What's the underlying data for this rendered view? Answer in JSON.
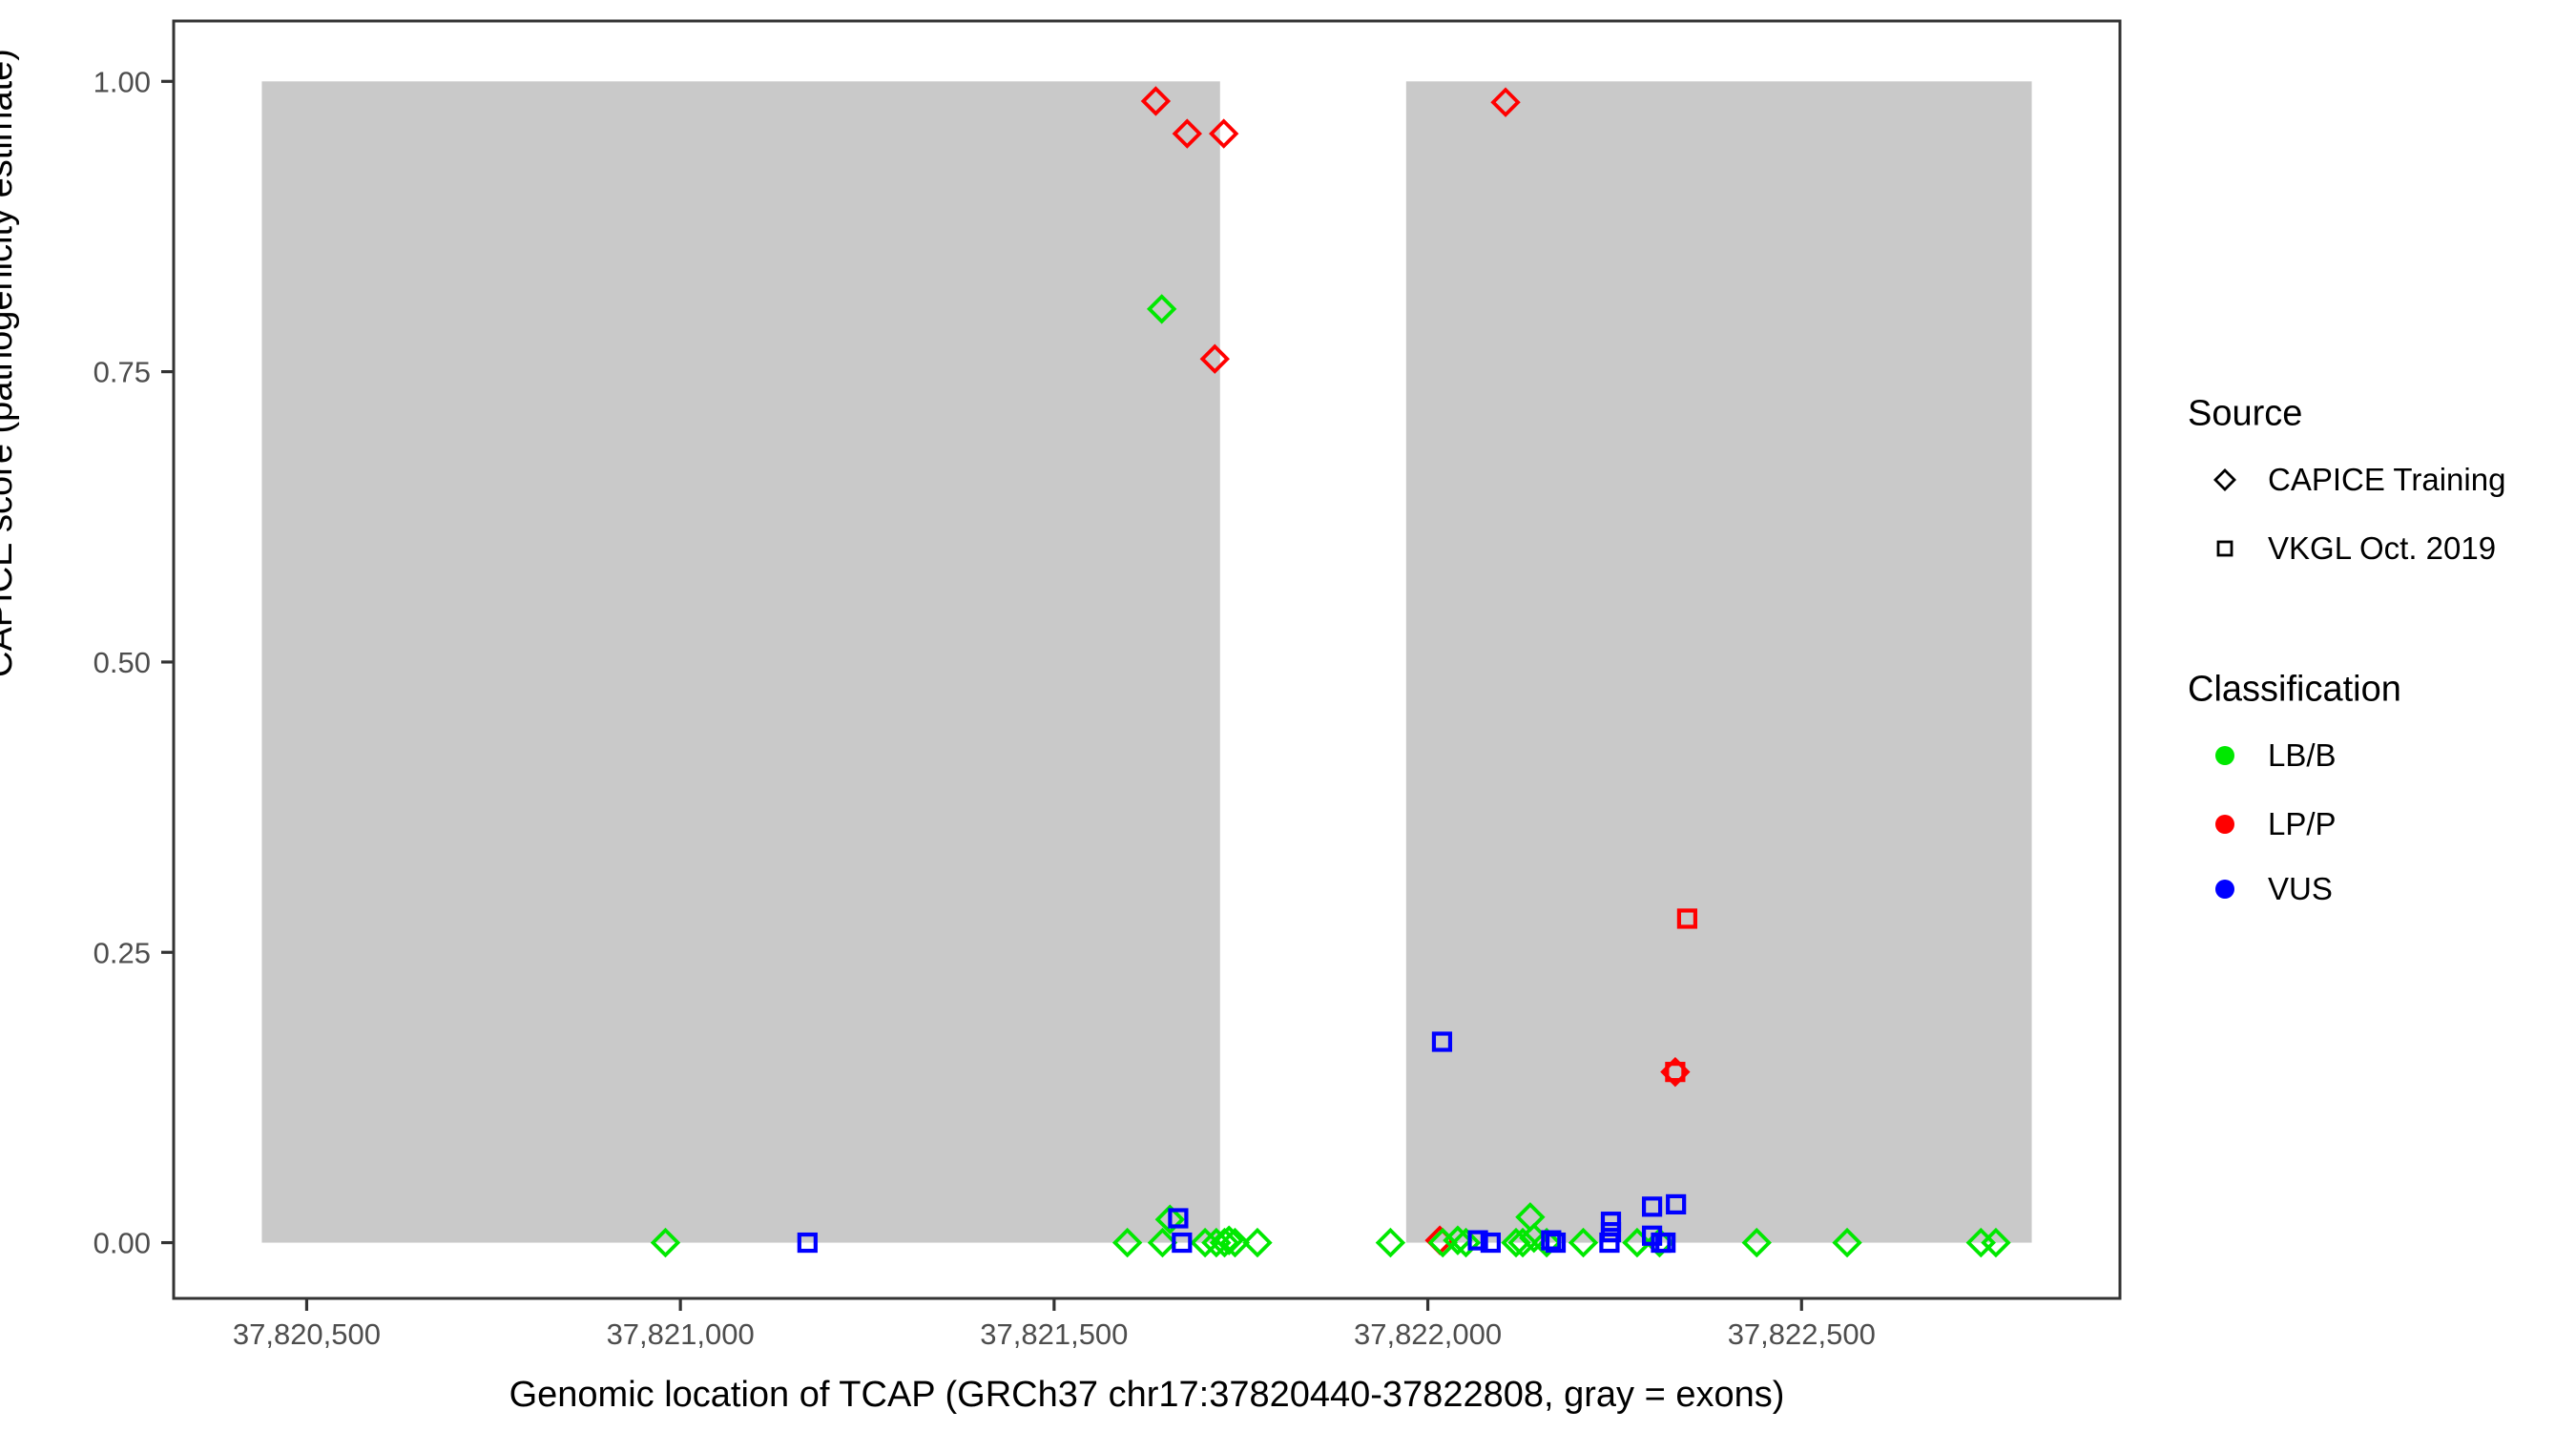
{
  "chart_data": {
    "type": "scatter",
    "xlabel": "Genomic location of TCAP (GRCh37 chr17:37820440-37822808, gray = exons)",
    "ylabel": "CAPICE score (pathogenicity estimate)",
    "xlim": [
      37820322,
      37822926
    ],
    "ylim": [
      -0.048,
      1.052
    ],
    "grid": "off",
    "x_ticks": [
      {
        "value": 37820500,
        "label": "37,820,500"
      },
      {
        "value": 37821000,
        "label": "37,821,000"
      },
      {
        "value": 37821500,
        "label": "37,821,500"
      },
      {
        "value": 37822000,
        "label": "37,822,000"
      },
      {
        "value": 37822500,
        "label": "37,822,500"
      }
    ],
    "y_ticks": [
      {
        "value": 0.0,
        "label": "0.00"
      },
      {
        "value": 0.25,
        "label": "0.25"
      },
      {
        "value": 0.5,
        "label": "0.50"
      },
      {
        "value": 0.75,
        "label": "0.75"
      },
      {
        "value": 1.0,
        "label": "1.00"
      }
    ],
    "exon_color": "#c9c9c9",
    "exons": [
      {
        "start": 37820440,
        "end": 37821722,
        "score_from": 0.0,
        "score_to": 1.0
      },
      {
        "start": 37821971,
        "end": 37822808,
        "score_from": 0.0,
        "score_to": 1.0
      }
    ],
    "series": [
      {
        "name": "CAPICE Training / LP/P",
        "source": "CAPICE Training",
        "classification": "LP/P",
        "shape": "diamond",
        "color": "#ff0000",
        "points": [
          [
            37821636,
            0.983
          ],
          [
            37821678,
            0.955
          ],
          [
            37821727,
            0.955
          ],
          [
            37822104,
            0.982
          ],
          [
            37821715,
            0.761
          ],
          [
            37822016,
            0.002
          ],
          [
            37822331,
            0.147
          ]
        ]
      },
      {
        "name": "CAPICE Training / LB/B",
        "source": "CAPICE Training",
        "classification": "LB/B",
        "shape": "diamond",
        "color": "#00e800",
        "points": [
          [
            37821644,
            0.804
          ],
          [
            37820980,
            0.0
          ],
          [
            37821598,
            0.0
          ],
          [
            37821645,
            0.0
          ],
          [
            37821655,
            0.02
          ],
          [
            37821702,
            0.0
          ],
          [
            37821717,
            0.0
          ],
          [
            37821728,
            0.0
          ],
          [
            37821734,
            0.002
          ],
          [
            37821742,
            0.0
          ],
          [
            37821772,
            0.0
          ],
          [
            37821950,
            0.0
          ],
          [
            37822020,
            0.0
          ],
          [
            37822040,
            0.002
          ],
          [
            37822051,
            0.0
          ],
          [
            37822118,
            0.0
          ],
          [
            37822127,
            0.0
          ],
          [
            37822137,
            0.022
          ],
          [
            37822142,
            0.004
          ],
          [
            37822159,
            0.0
          ],
          [
            37822208,
            0.0
          ],
          [
            37822280,
            0.0
          ],
          [
            37822310,
            0.0
          ],
          [
            37822440,
            0.0
          ],
          [
            37822561,
            0.0
          ],
          [
            37822740,
            0.0
          ],
          [
            37822760,
            0.0
          ]
        ]
      },
      {
        "name": "VKGL Oct. 2019 / VUS",
        "source": "VKGL Oct. 2019",
        "classification": "VUS",
        "shape": "square",
        "color": "#0000ff",
        "points": [
          [
            37821170,
            0.0
          ],
          [
            37821666,
            0.021
          ],
          [
            37821671,
            0.0
          ],
          [
            37822019,
            0.173
          ],
          [
            37822067,
            0.002
          ],
          [
            37822084,
            0.0
          ],
          [
            37822165,
            0.002
          ],
          [
            37822171,
            0.0
          ],
          [
            37822245,
            0.018
          ],
          [
            37822245,
            0.009
          ],
          [
            37822243,
            0.0
          ],
          [
            37822300,
            0.031
          ],
          [
            37822332,
            0.033
          ],
          [
            37822300,
            0.006
          ],
          [
            37822312,
            0.0
          ],
          [
            37822318,
            0.0
          ]
        ]
      },
      {
        "name": "VKGL Oct. 2019 / LP/P",
        "source": "VKGL Oct. 2019",
        "classification": "LP/P",
        "shape": "square",
        "color": "#ff0000",
        "points": [
          [
            37822347,
            0.279
          ],
          [
            37822331,
            0.147
          ]
        ]
      }
    ]
  },
  "legend": {
    "source": {
      "title": "Source",
      "items": [
        {
          "label": "CAPICE Training",
          "shape": "diamond"
        },
        {
          "label": "VKGL Oct. 2019",
          "shape": "square"
        }
      ]
    },
    "classification": {
      "title": "Classification",
      "items": [
        {
          "label": "LB/B",
          "color": "#00e800"
        },
        {
          "label": "LP/P",
          "color": "#ff0000"
        },
        {
          "label": "VUS",
          "color": "#0000ff"
        }
      ]
    }
  },
  "style": {
    "panel_border_color": "#333333",
    "tick_color": "#333333",
    "tick_label_color": "#4d4d4d"
  }
}
